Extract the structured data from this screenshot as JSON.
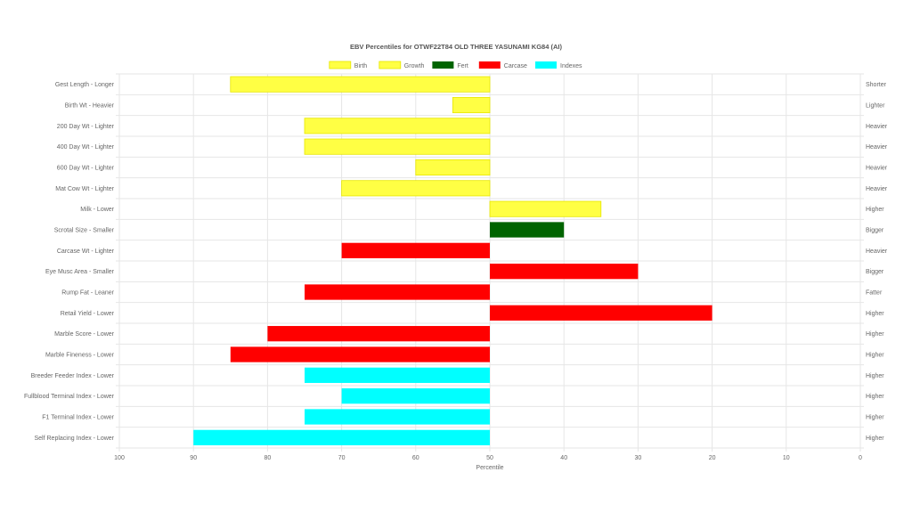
{
  "chart_data": {
    "type": "bar",
    "orientation": "horizontal",
    "title": "EBV Percentiles for OTWF22T84 OLD THREE YASUNAMI KG84 (AI)",
    "xlabel": "Percentile",
    "xlim": [
      100,
      0
    ],
    "x_reversed": true,
    "baseline": 50,
    "xticks": [
      "100",
      "90",
      "80",
      "70",
      "60",
      "50",
      "40",
      "30",
      "20",
      "10",
      "0"
    ],
    "grid": true,
    "legend_position": "top",
    "legend": [
      {
        "name": "Birth",
        "color": "#ffff44"
      },
      {
        "name": "Growth",
        "color": "#ffff44"
      },
      {
        "name": "Fert",
        "color": "#006400"
      },
      {
        "name": "Carcase",
        "color": "#ff0000"
      },
      {
        "name": "Indexes",
        "color": "#00ffff"
      }
    ],
    "categories": [
      "Gest Length - Longer",
      "Birth Wt - Heavier",
      "200 Day Wt - Lighter",
      "400 Day Wt - Lighter",
      "600 Day Wt - Lighter",
      "Mat Cow Wt - Lighter",
      "Milk - Lower",
      "Scrotal Size - Smaller",
      "Carcase Wt - Lighter",
      "Eye Musc Area - Smaller",
      "Rump Fat - Leaner",
      "Retail Yield - Lower",
      "Marble Score - Lower",
      "Marble Fineness - Lower",
      "Breeder Feeder Index - Lower",
      "Fullblood Terminal Index - Lower",
      "F1 Terminal Index - Lower",
      "Self Replacing Index - Lower"
    ],
    "right_labels": [
      "Shorter",
      "Lighter",
      "Heavier",
      "Heavier",
      "Heavier",
      "Heavier",
      "Higher",
      "Bigger",
      "Heavier",
      "Bigger",
      "Fatter",
      "Higher",
      "Higher",
      "Higher",
      "Higher",
      "Higher",
      "Higher",
      "Higher"
    ],
    "values": [
      85,
      55,
      75,
      75,
      60,
      70,
      35,
      40,
      70,
      30,
      75,
      20,
      80,
      85,
      75,
      70,
      75,
      90
    ],
    "groups": [
      "Birth",
      "Birth",
      "Growth",
      "Growth",
      "Growth",
      "Growth",
      "Growth",
      "Fert",
      "Carcase",
      "Carcase",
      "Carcase",
      "Carcase",
      "Carcase",
      "Carcase",
      "Indexes",
      "Indexes",
      "Indexes",
      "Indexes"
    ],
    "colors": [
      "#ffff44",
      "#ffff44",
      "#ffff44",
      "#ffff44",
      "#ffff44",
      "#ffff44",
      "#ffff44",
      "#006400",
      "#ff0000",
      "#ff0000",
      "#ff0000",
      "#ff0000",
      "#ff0000",
      "#ff0000",
      "#00ffff",
      "#00ffff",
      "#00ffff",
      "#00ffff"
    ],
    "bar_border_color": "#e6e600",
    "grid_color": "#e6e6e6"
  }
}
